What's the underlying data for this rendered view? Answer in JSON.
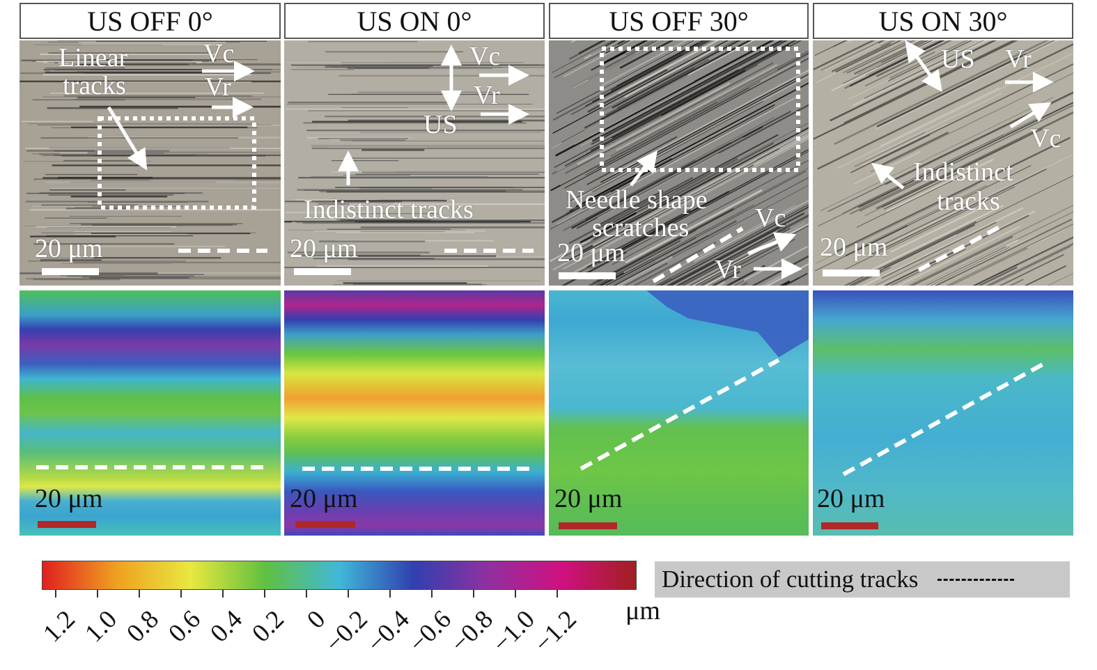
{
  "panels": [
    {
      "title": "US OFF 0°",
      "micro_labels": {
        "text1": "Linear",
        "text2": "tracks",
        "vc": "Vc",
        "vr": "Vr"
      },
      "scale": "20 μm",
      "map_scale": "20 μm"
    },
    {
      "title": "US ON 0°",
      "micro_labels": {
        "vc": "Vc",
        "vr": "Vr",
        "us": "US",
        "text1": "Indistinct tracks"
      },
      "scale": "20 μm",
      "map_scale": "20 μm"
    },
    {
      "title": "US OFF 30°",
      "micro_labels": {
        "text1": "Needle shape",
        "text2": "scratches",
        "vc": "Vc",
        "vr": "Vr"
      },
      "scale": "20 μm",
      "map_scale": "20 μm"
    },
    {
      "title": "US ON 30°",
      "micro_labels": {
        "us": "US",
        "vr": "Vr",
        "vc": "Vc",
        "text1": "Indistinct",
        "text2": "tracks"
      },
      "scale": "20 μm",
      "map_scale": "20 μm"
    }
  ],
  "colorbar": {
    "ticks": [
      "1.2",
      "1.0",
      "0.8",
      "0.6",
      "0.4",
      "0.2",
      "0",
      "−0.2",
      "−0.4",
      "−0.6",
      "−0.8",
      "−1.0",
      "−1.2"
    ],
    "unit": "μm",
    "colors": [
      "#e02020",
      "#f0a020",
      "#e8e840",
      "#60c040",
      "#40b8d8",
      "#3040b0",
      "#9030a0",
      "#d01080",
      "#a02020"
    ]
  },
  "legend": {
    "label": "Direction of cutting tracks"
  }
}
